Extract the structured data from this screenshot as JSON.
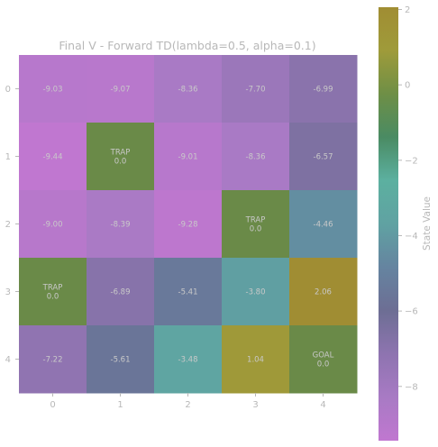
{
  "chart_data": {
    "type": "heatmap",
    "title": "Final V - Forward TD(lambda=0.5, alpha=0.1)",
    "xlabel": "",
    "ylabel": "",
    "x_ticks": [
      "0",
      "1",
      "2",
      "3",
      "4"
    ],
    "y_ticks": [
      "0",
      "1",
      "2",
      "3",
      "4"
    ],
    "colorbar": {
      "label": "State Value",
      "vmin": -9.44,
      "vmax": 2.06,
      "ticks": [
        -8,
        -6,
        -4,
        -2,
        0,
        2
      ],
      "tick_labels": [
        "−8",
        "−6",
        "−4",
        "−2",
        "0",
        "2"
      ],
      "colors": [
        "#c077d0",
        "#a87ac4",
        "#8e74b0",
        "#6d6e94",
        "#6584a0",
        "#60a2a2",
        "#5cb0a0",
        "#4a8b63",
        "#6e8f46",
        "#9f9b3a",
        "#a08d33"
      ]
    },
    "values": [
      [
        -9.03,
        -9.07,
        -8.36,
        -7.7,
        -6.99
      ],
      [
        -9.44,
        0.0,
        -9.01,
        -8.36,
        -6.57
      ],
      [
        -9.0,
        -8.39,
        -9.28,
        0.0,
        -4.46
      ],
      [
        0.0,
        -6.89,
        -5.41,
        -3.8,
        2.06
      ],
      [
        -7.22,
        -5.61,
        -3.48,
        1.04,
        0.0
      ]
    ],
    "labels": [
      [
        "-9.03",
        "-9.07",
        "-8.36",
        "-7.70",
        "-6.99"
      ],
      [
        "-9.44",
        "TRAP\n0.0",
        "-9.01",
        "-8.36",
        "-6.57"
      ],
      [
        "-9.00",
        "-8.39",
        "-9.28",
        "TRAP\n0.0",
        "-4.46"
      ],
      [
        "TRAP\n0.0",
        "-6.89",
        "-5.41",
        "-3.80",
        "2.06"
      ],
      [
        "-7.22",
        "-5.61",
        "-3.48",
        "1.04",
        "GOAL\n0.0"
      ]
    ],
    "special_cell_color": "#6a8a48",
    "text_color": "#c9c9c9",
    "axis_text_color": "#b8b8b8"
  }
}
